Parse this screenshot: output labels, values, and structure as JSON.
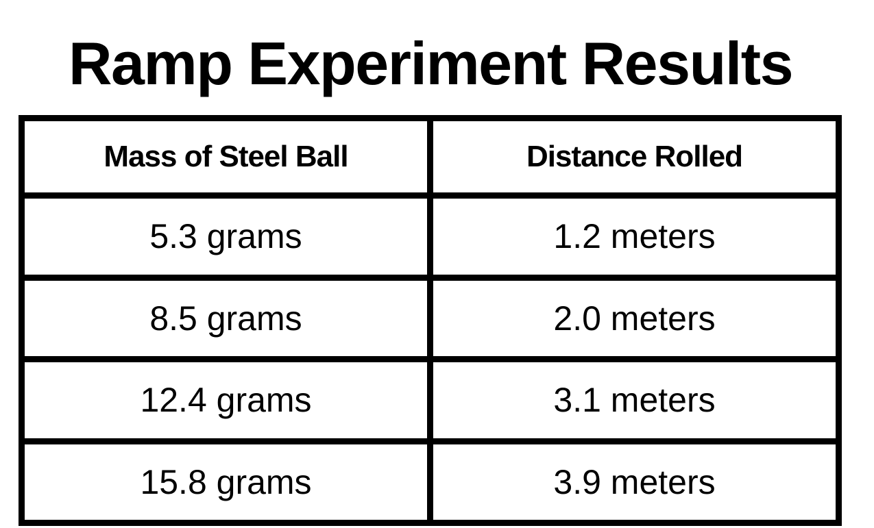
{
  "title": "Ramp Experiment Results",
  "table": {
    "header": [
      "Mass of Steel Ball",
      "Distance Rolled"
    ],
    "rows": [
      [
        "5.3 grams",
        "1.2 meters"
      ],
      [
        "8.5 grams",
        "2.0 meters"
      ],
      [
        "12.4 grams",
        "3.1 meters"
      ],
      [
        "15.8 grams",
        "3.9 meters"
      ]
    ]
  }
}
